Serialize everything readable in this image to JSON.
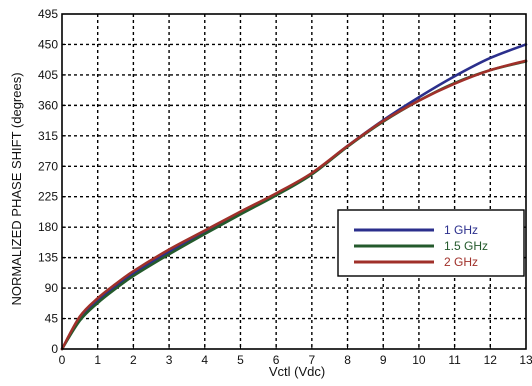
{
  "chart_data": {
    "type": "line",
    "title": "",
    "xlabel": "Vctl (Vdc)",
    "ylabel": "NORMALIZED PHASE SHIFT (degrees)",
    "xlim": [
      0,
      13
    ],
    "ylim": [
      0,
      495
    ],
    "xticks": [
      0,
      1,
      2,
      3,
      4,
      5,
      6,
      7,
      8,
      9,
      10,
      11,
      12,
      13
    ],
    "yticks": [
      0,
      45,
      90,
      135,
      180,
      225,
      270,
      315,
      360,
      405,
      450,
      495
    ],
    "grid": true,
    "legend_position": "bottom-right",
    "series": [
      {
        "name": "1 GHz",
        "color": "#2b2f8c",
        "x": [
          0,
          0.5,
          1,
          1.5,
          2,
          3,
          4,
          5,
          6,
          7,
          8,
          9,
          10,
          11,
          12,
          13
        ],
        "y": [
          0,
          45,
          72,
          93,
          112,
          144,
          173,
          201,
          229,
          259,
          300,
          338,
          372,
          403,
          430,
          450
        ]
      },
      {
        "name": "1.5 GHz",
        "color": "#245a2c",
        "x": [
          0,
          0.5,
          1,
          1.5,
          2,
          3,
          4,
          5,
          6,
          7,
          8,
          9,
          10,
          11,
          12,
          13
        ],
        "y": [
          0,
          42,
          68,
          89,
          108,
          140,
          170,
          199,
          227,
          258,
          299,
          336,
          367,
          393,
          412,
          425
        ]
      },
      {
        "name": "2 GHz",
        "color": "#a0302a",
        "x": [
          0,
          0.5,
          1,
          1.5,
          2,
          3,
          4,
          5,
          6,
          7,
          8,
          9,
          10,
          11,
          12,
          13
        ],
        "y": [
          0,
          48,
          75,
          96,
          115,
          147,
          175,
          203,
          230,
          260,
          300,
          337,
          367,
          392,
          412,
          426
        ]
      }
    ]
  }
}
